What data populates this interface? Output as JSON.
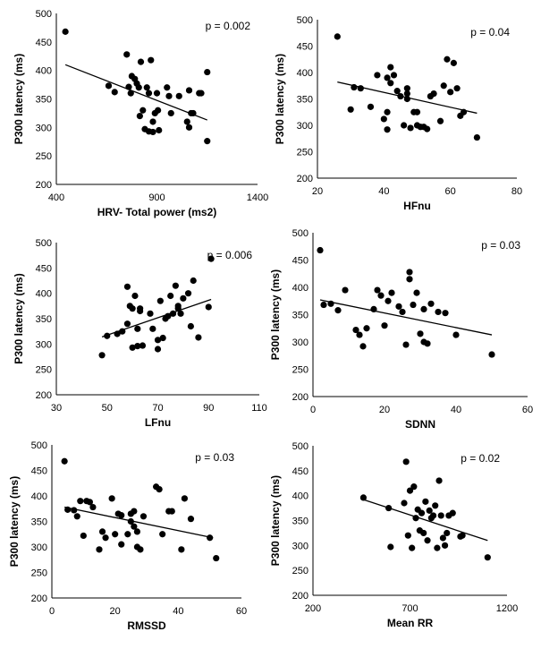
{
  "chart_data": [
    {
      "type": "scatter",
      "title": "",
      "xlabel": "HRV- Total power (ms2)",
      "ylabel": "P300 latency (ms)",
      "annotation": "p = 0.002",
      "xlim": [
        400,
        1400
      ],
      "ylim": [
        200,
        500
      ],
      "xticks": [
        "400",
        "900",
        "1400"
      ],
      "yticks": [
        "200",
        "250",
        "300",
        "350",
        "400",
        "450",
        "500"
      ],
      "x": [
        445,
        660,
        690,
        750,
        760,
        770,
        775,
        790,
        800,
        810,
        815,
        820,
        830,
        840,
        850,
        860,
        860,
        870,
        880,
        880,
        890,
        900,
        905,
        910,
        950,
        960,
        970,
        1010,
        1050,
        1060,
        1060,
        1070,
        1080,
        1110,
        1120,
        1150,
        1150
      ],
      "y": [
        468,
        373,
        362,
        428,
        371,
        360,
        390,
        385,
        377,
        370,
        320,
        415,
        330,
        297,
        370,
        293,
        360,
        418,
        292,
        310,
        325,
        360,
        330,
        295,
        370,
        355,
        325,
        355,
        310,
        300,
        365,
        325,
        325,
        360,
        360,
        397,
        276
      ],
      "trend": [
        [
          445,
          410
        ],
        [
          1150,
          313
        ]
      ]
    },
    {
      "type": "scatter",
      "title": "",
      "xlabel": "HFnu",
      "ylabel": "P300 latency (ms)",
      "annotation": "p = 0.04",
      "xlim": [
        20,
        80
      ],
      "ylim": [
        200,
        500
      ],
      "xticks": [
        "20",
        "40",
        "60",
        "80"
      ],
      "yticks": [
        "200",
        "250",
        "300",
        "350",
        "400",
        "450",
        "500"
      ],
      "x": [
        26,
        30,
        31,
        33,
        36,
        38,
        40,
        41,
        41,
        41,
        42,
        42,
        43,
        44,
        45,
        46,
        47,
        47,
        47,
        48,
        49,
        50,
        50,
        51,
        52,
        53,
        54,
        55,
        57,
        58,
        59,
        60,
        61,
        62,
        63,
        64,
        68
      ],
      "y": [
        468,
        330,
        372,
        370,
        335,
        395,
        312,
        292,
        325,
        390,
        380,
        410,
        395,
        365,
        355,
        300,
        350,
        360,
        370,
        295,
        325,
        300,
        325,
        297,
        297,
        293,
        355,
        360,
        308,
        375,
        425,
        363,
        418,
        370,
        318,
        325,
        277
      ],
      "trend": [
        [
          26,
          382
        ],
        [
          68,
          323
        ]
      ]
    },
    {
      "type": "scatter",
      "title": "",
      "xlabel": "LFnu",
      "ylabel": "P300 latency (ms)",
      "annotation": "p = 0.006",
      "xlim": [
        30,
        110
      ],
      "ylim": [
        200,
        500
      ],
      "xticks": [
        "30",
        "50",
        "70",
        "90",
        "110"
      ],
      "yticks": [
        "200",
        "250",
        "300",
        "350",
        "400",
        "450",
        "500"
      ],
      "x": [
        48,
        50,
        54,
        56,
        58,
        58,
        59,
        60,
        60,
        61,
        62,
        62,
        63,
        63,
        64,
        67,
        68,
        70,
        70,
        71,
        72,
        73,
        74,
        75,
        76,
        77,
        78,
        78,
        79,
        80,
        82,
        83,
        84,
        86,
        90,
        91
      ],
      "y": [
        278,
        316,
        320,
        325,
        413,
        340,
        375,
        293,
        370,
        395,
        296,
        330,
        370,
        365,
        297,
        360,
        330,
        290,
        308,
        385,
        312,
        350,
        355,
        395,
        360,
        415,
        370,
        375,
        360,
        390,
        400,
        335,
        425,
        313,
        373,
        468
      ],
      "trend": [
        [
          48,
          314
        ],
        [
          91,
          388
        ]
      ]
    },
    {
      "type": "scatter",
      "title": "",
      "xlabel": "SDNN",
      "ylabel": "P300 latency (ms)",
      "annotation": "p = 0.03",
      "xlim": [
        0,
        60
      ],
      "ylim": [
        200,
        500
      ],
      "xticks": [
        "0",
        "20",
        "40",
        "60"
      ],
      "yticks": [
        "200",
        "250",
        "300",
        "350",
        "400",
        "450",
        "500"
      ],
      "x": [
        2,
        3,
        5,
        7,
        9,
        12,
        13,
        14,
        15,
        17,
        18,
        19,
        20,
        21,
        22,
        24,
        25,
        26,
        27,
        27,
        28,
        29,
        30,
        31,
        31,
        32,
        33,
        35,
        37,
        40,
        50
      ],
      "y": [
        468,
        368,
        370,
        358,
        395,
        322,
        313,
        292,
        325,
        360,
        395,
        385,
        330,
        375,
        390,
        365,
        355,
        295,
        428,
        415,
        368,
        390,
        315,
        300,
        360,
        297,
        370,
        355,
        353,
        313,
        277
      ],
      "trend": [
        [
          2,
          377
        ],
        [
          50,
          313
        ]
      ]
    },
    {
      "type": "scatter",
      "title": "",
      "xlabel": "RMSSD",
      "ylabel": "P300 latency (ms)",
      "annotation": "p = 0.03",
      "xlim": [
        0,
        60
      ],
      "ylim": [
        200,
        500
      ],
      "xticks": [
        "0",
        "20",
        "40",
        "60"
      ],
      "yticks": [
        "200",
        "250",
        "300",
        "350",
        "400",
        "450",
        "500"
      ],
      "x": [
        4,
        5,
        7,
        8,
        9,
        10,
        11,
        12,
        13,
        15,
        16,
        17,
        19,
        20,
        21,
        22,
        22,
        24,
        25,
        25,
        26,
        26,
        27,
        27,
        28,
        29,
        33,
        34,
        35,
        37,
        38,
        41,
        42,
        44,
        50,
        52
      ],
      "y": [
        468,
        373,
        372,
        360,
        390,
        322,
        390,
        388,
        378,
        295,
        330,
        318,
        395,
        325,
        365,
        362,
        305,
        325,
        365,
        350,
        370,
        340,
        300,
        330,
        295,
        360,
        418,
        413,
        325,
        370,
        370,
        295,
        395,
        355,
        318,
        278
      ],
      "trend": [
        [
          4,
          378
        ],
        [
          51,
          318
        ]
      ]
    },
    {
      "type": "scatter",
      "title": "",
      "xlabel": "Mean RR",
      "ylabel": "P300 latency (ms)",
      "annotation": "p = 0.02",
      "xlim": [
        200,
        1200
      ],
      "ylim": [
        200,
        500
      ],
      "xticks": [
        "200",
        "700",
        "1200"
      ],
      "yticks": [
        "200",
        "250",
        "300",
        "350",
        "400",
        "450",
        "500"
      ],
      "x": [
        460,
        590,
        600,
        670,
        680,
        690,
        700,
        710,
        720,
        730,
        740,
        750,
        760,
        770,
        780,
        790,
        800,
        810,
        820,
        830,
        840,
        850,
        860,
        870,
        880,
        890,
        900,
        920,
        960,
        970,
        1100
      ],
      "y": [
        396,
        375,
        297,
        385,
        468,
        320,
        410,
        295,
        418,
        355,
        372,
        330,
        365,
        325,
        388,
        310,
        370,
        355,
        360,
        380,
        295,
        430,
        360,
        315,
        300,
        325,
        360,
        365,
        318,
        320,
        276
      ],
      "trend": [
        [
          460,
          392
        ],
        [
          1100,
          310
        ]
      ]
    }
  ]
}
